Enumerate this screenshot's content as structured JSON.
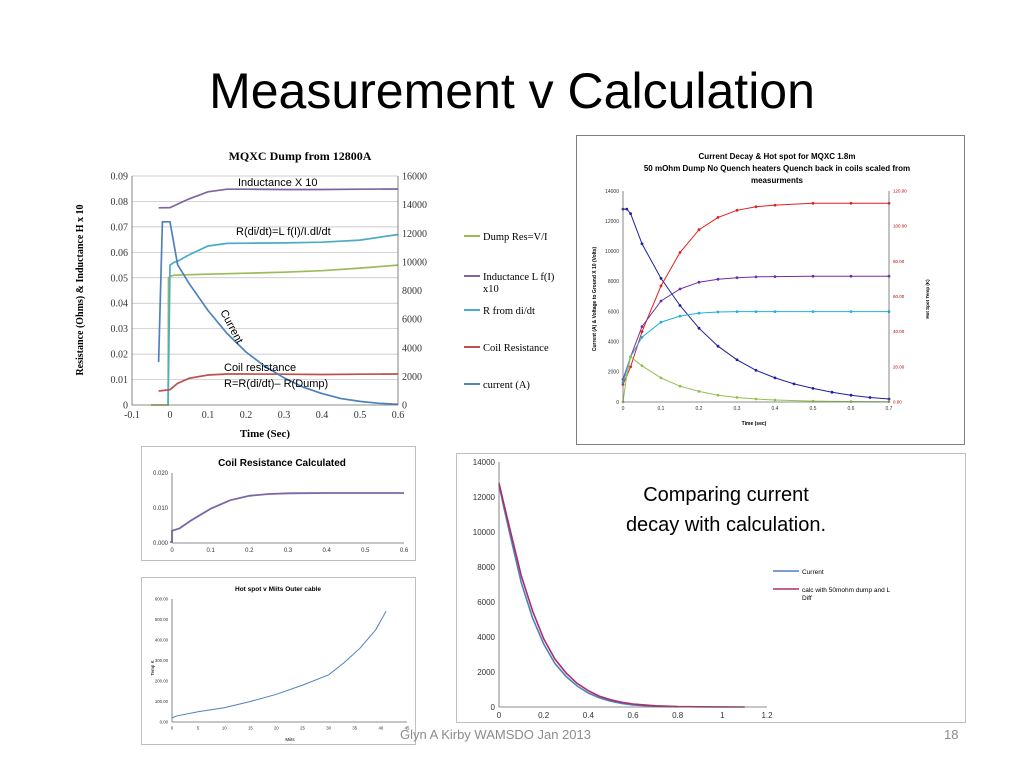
{
  "slide": {
    "title": "Measurement v Calculation",
    "caption": "Comparing current decay with calculation.",
    "footer_left": "Glyn A Kirby  WAMSDO Jan 2013",
    "page_number": "18"
  },
  "chart_data": [
    {
      "id": "mqxc-dump",
      "type": "line",
      "title": "MQXC Dump from 12800A",
      "xlabel": "Time (Sec)",
      "ylabel": "Resistance (Ohms) & Inductance H x 10",
      "xlim": [
        -0.1,
        0.6
      ],
      "ylim": [
        0,
        0.09
      ],
      "y2lim": [
        0,
        16000
      ],
      "x_ticks": [
        "-0.1",
        "0",
        "0.1",
        "0.2",
        "0.3",
        "0.4",
        "0.5",
        "0.6"
      ],
      "y_ticks": [
        "0",
        "0.01",
        "0.02",
        "0.03",
        "0.04",
        "0.05",
        "0.06",
        "0.07",
        "0.08",
        "0.09"
      ],
      "y2_ticks": [
        "0",
        "2000",
        "4000",
        "6000",
        "8000",
        "10000",
        "12000",
        "14000",
        "16000"
      ],
      "grid": true,
      "legend_position": "right",
      "annotations": [
        "Inductance X 10",
        "R(di/dt)=L f(I)/I.dl/dt",
        "Current",
        "Coil resistance",
        "R=R(di/dt)– R(Dump)"
      ],
      "series": [
        {
          "name": "Dump Res=V/I",
          "color": "#9bbb59",
          "axis": "left",
          "x": [
            -0.05,
            -0.005,
            -0.004,
            0.0,
            0.01,
            0.05,
            0.1,
            0.2,
            0.3,
            0.4,
            0.5,
            0.6
          ],
          "y": [
            0.0,
            0.0,
            0.05,
            0.0505,
            0.051,
            0.0512,
            0.0514,
            0.0518,
            0.0522,
            0.0528,
            0.0538,
            0.055
          ]
        },
        {
          "name": "Inductance L f(I) x10",
          "color": "#8064a2",
          "axis": "left",
          "x": [
            -0.03,
            0.0,
            0.05,
            0.1,
            0.15,
            0.2,
            0.3,
            0.4,
            0.5,
            0.6
          ],
          "y": [
            0.0775,
            0.0776,
            0.081,
            0.0838,
            0.0848,
            0.0848,
            0.0847,
            0.0847,
            0.0848,
            0.0849
          ]
        },
        {
          "name": "R from di/dt",
          "color": "#4bacc6",
          "axis": "left",
          "x": [
            -0.005,
            0.0,
            0.01,
            0.02,
            0.05,
            0.1,
            0.15,
            0.2,
            0.3,
            0.4,
            0.5,
            0.6
          ],
          "y": [
            0.0,
            0.055,
            0.056,
            0.0565,
            0.059,
            0.0625,
            0.0635,
            0.0636,
            0.0637,
            0.064,
            0.0648,
            0.067
          ]
        },
        {
          "name": "Coil Resistance",
          "color": "#c0504d",
          "axis": "left",
          "x": [
            -0.03,
            0.0,
            0.02,
            0.05,
            0.1,
            0.15,
            0.2,
            0.3,
            0.4,
            0.5,
            0.6
          ],
          "y": [
            0.0055,
            0.006,
            0.0085,
            0.0105,
            0.0118,
            0.0122,
            0.0122,
            0.0121,
            0.012,
            0.0121,
            0.0122
          ]
        },
        {
          "name": "current (A)",
          "color": "#4f81bd",
          "axis": "right",
          "x": [
            -0.03,
            -0.02,
            0.0,
            0.02,
            0.05,
            0.1,
            0.15,
            0.2,
            0.25,
            0.3,
            0.35,
            0.4,
            0.45,
            0.5,
            0.55,
            0.6
          ],
          "y": [
            3000,
            12800,
            12800,
            9800,
            8500,
            6600,
            5000,
            3700,
            2700,
            1900,
            1250,
            800,
            450,
            250,
            120,
            50
          ]
        }
      ]
    },
    {
      "id": "current-decay-hotspot",
      "type": "line",
      "title": "Current Decay & Hot spot for MQXC 1.8m 50 mOhm Dump No Quench heaters Quench back in coils scaled from measurments",
      "xlabel": "Time (sec)",
      "ylabel": "Current (A) & Voltage to Ground X 10 (Volts)",
      "y2label": "Hot Spot Temp (K)",
      "xlim": [
        0,
        0.7
      ],
      "ylim": [
        0,
        14000
      ],
      "y2lim": [
        0,
        120
      ],
      "x_ticks": [
        "0",
        "0.1",
        "0.2",
        "0.3",
        "0.4",
        "0.5",
        "0.6",
        "0.7"
      ],
      "y_ticks": [
        "0",
        "2000",
        "4000",
        "6000",
        "8000",
        "10000",
        "12000",
        "14000"
      ],
      "y2_ticks": [
        "0.00",
        "20.00",
        "40.00",
        "60.00",
        "80.00",
        "100.00",
        "120.00"
      ],
      "grid": false,
      "series": [
        {
          "color": "#1f1fa0",
          "axis": "left",
          "x": [
            0.0,
            0.01,
            0.02,
            0.05,
            0.1,
            0.15,
            0.2,
            0.25,
            0.3,
            0.35,
            0.4,
            0.45,
            0.5,
            0.55,
            0.6,
            0.65,
            0.7
          ],
          "y": [
            12800,
            12800,
            12500,
            10500,
            8200,
            6400,
            4900,
            3700,
            2800,
            2100,
            1600,
            1200,
            900,
            650,
            450,
            300,
            200
          ]
        },
        {
          "color": "#e02020",
          "axis": "right",
          "x": [
            0.0,
            0.02,
            0.05,
            0.1,
            0.15,
            0.2,
            0.25,
            0.3,
            0.35,
            0.4,
            0.5,
            0.6,
            0.7
          ],
          "y": [
            10,
            20,
            40,
            66,
            85,
            98,
            105,
            109,
            111,
            112,
            113,
            113,
            113
          ]
        },
        {
          "color": "#7030a0",
          "axis": "left",
          "x": [
            0.0,
            0.02,
            0.05,
            0.1,
            0.15,
            0.2,
            0.25,
            0.3,
            0.35,
            0.4,
            0.5,
            0.6,
            0.7
          ],
          "y": [
            1500,
            3000,
            5000,
            6700,
            7500,
            7950,
            8150,
            8250,
            8300,
            8320,
            8350,
            8350,
            8350
          ]
        },
        {
          "color": "#20b0e0",
          "axis": "left",
          "x": [
            0.0,
            0.02,
            0.05,
            0.1,
            0.15,
            0.2,
            0.25,
            0.3,
            0.35,
            0.4,
            0.5,
            0.6,
            0.7
          ],
          "y": [
            1300,
            3000,
            4300,
            5300,
            5700,
            5900,
            5970,
            6000,
            6000,
            6000,
            6000,
            6000,
            6000
          ]
        },
        {
          "color": "#92c050",
          "axis": "left",
          "x": [
            0.0,
            0.01,
            0.02,
            0.05,
            0.1,
            0.15,
            0.2,
            0.25,
            0.3,
            0.35,
            0.4,
            0.5,
            0.6,
            0.7
          ],
          "y": [
            0,
            1800,
            3000,
            2400,
            1600,
            1050,
            700,
            450,
            300,
            200,
            130,
            60,
            30,
            10
          ]
        }
      ]
    },
    {
      "id": "coil-resistance",
      "type": "line",
      "title": "Coil Resistance  Calculated",
      "xlim": [
        0,
        0.6
      ],
      "ylim": [
        0,
        0.02
      ],
      "x_ticks": [
        "0",
        "0.1",
        "0.2",
        "0.3",
        "0.4",
        "0.5",
        "0.6"
      ],
      "y_ticks": [
        "0.000",
        "0.010",
        "0.020"
      ],
      "series": [
        {
          "color": "#7b67a8",
          "x": [
            -0.005,
            0.0,
            0.0,
            0.02,
            0.05,
            0.1,
            0.15,
            0.2,
            0.25,
            0.3,
            0.4,
            0.5,
            0.6
          ],
          "y": [
            0.0003,
            0.0003,
            0.0035,
            0.0042,
            0.0065,
            0.0098,
            0.0122,
            0.0135,
            0.014,
            0.0142,
            0.0143,
            0.0143,
            0.0143
          ]
        }
      ]
    },
    {
      "id": "hot-spot-miits",
      "type": "line",
      "title": "Hot spot  v Miits Outer cable",
      "xlabel": "Miits",
      "ylabel": "Temp K",
      "xlim": [
        0,
        45
      ],
      "ylim": [
        0,
        600
      ],
      "x_ticks": [
        "0",
        "5",
        "10",
        "15",
        "20",
        "25",
        "30",
        "35",
        "40",
        "45"
      ],
      "y_ticks": [
        "0.00",
        "100.00",
        "200.00",
        "300.00",
        "400.00",
        "500.00",
        "600.00"
      ],
      "series": [
        {
          "color": "#4f81bd",
          "x": [
            0,
            1,
            5,
            10,
            15,
            20,
            25,
            30,
            33,
            36,
            39,
            41
          ],
          "y": [
            20,
            30,
            50,
            70,
            100,
            135,
            180,
            230,
            290,
            360,
            450,
            540
          ]
        }
      ]
    },
    {
      "id": "current-comparison",
      "type": "line",
      "xlim": [
        0,
        1.2
      ],
      "ylim": [
        0,
        14000
      ],
      "x_ticks": [
        "0",
        "0.2",
        "0.4",
        "0.6",
        "0.8",
        "1",
        "1.2"
      ],
      "y_ticks": [
        "0",
        "2000",
        "4000",
        "6000",
        "8000",
        "10000",
        "12000",
        "14000"
      ],
      "legend_position": "right",
      "series": [
        {
          "name": "Current",
          "color": "#4f81bd",
          "x": [
            0.0,
            0.02,
            0.05,
            0.1,
            0.15,
            0.2,
            0.25,
            0.3,
            0.35,
            0.4,
            0.45,
            0.5,
            0.55,
            0.6,
            0.7,
            0.8
          ],
          "y": [
            12700,
            11500,
            9800,
            7100,
            5100,
            3600,
            2500,
            1750,
            1200,
            800,
            520,
            330,
            200,
            120,
            40,
            10
          ]
        },
        {
          "name": "calc with 50mohm dump and L Diff",
          "color": "#a8306a",
          "x": [
            0.0,
            0.02,
            0.05,
            0.1,
            0.15,
            0.2,
            0.25,
            0.3,
            0.35,
            0.4,
            0.45,
            0.5,
            0.55,
            0.6,
            0.7,
            0.8,
            0.9,
            1.0,
            1.1
          ],
          "y": [
            12800,
            11700,
            10100,
            7500,
            5500,
            3900,
            2750,
            1950,
            1350,
            930,
            620,
            410,
            270,
            170,
            70,
            25,
            10,
            4,
            0
          ]
        }
      ]
    }
  ]
}
